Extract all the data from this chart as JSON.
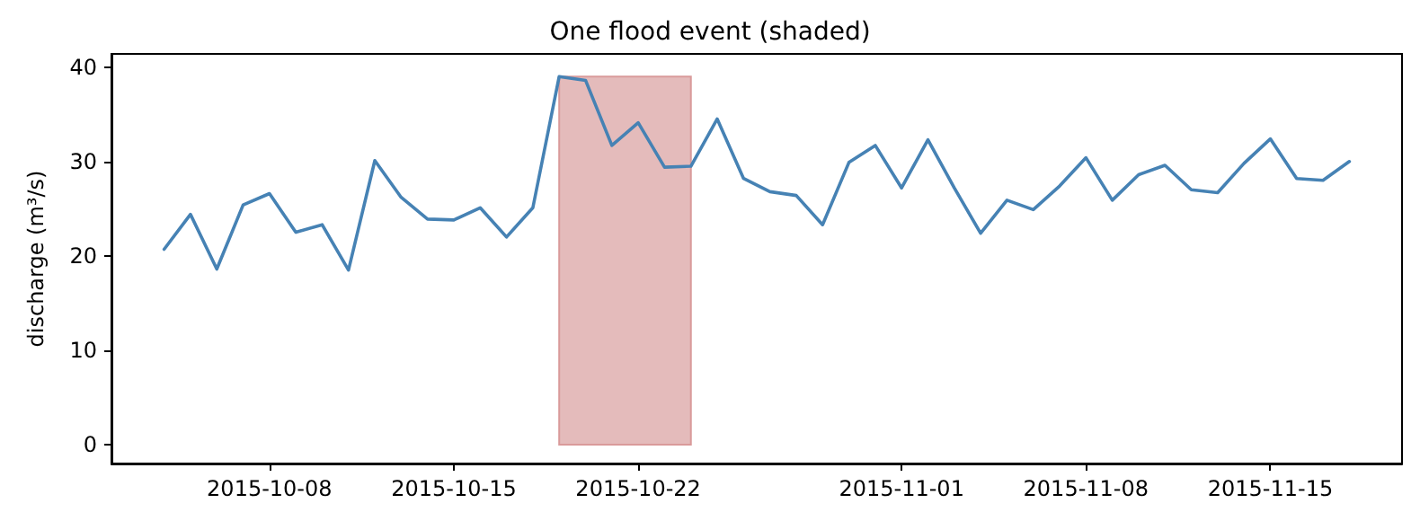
{
  "chart_data": {
    "type": "line",
    "title": "One flood event (shaded)",
    "ylabel": "discharge (m³/s)",
    "x": [
      "2015-10-04",
      "2015-10-05",
      "2015-10-06",
      "2015-10-07",
      "2015-10-08",
      "2015-10-09",
      "2015-10-10",
      "2015-10-11",
      "2015-10-12",
      "2015-10-13",
      "2015-10-14",
      "2015-10-15",
      "2015-10-16",
      "2015-10-17",
      "2015-10-18",
      "2015-10-19",
      "2015-10-20",
      "2015-10-21",
      "2015-10-22",
      "2015-10-23",
      "2015-10-24",
      "2015-10-25",
      "2015-10-26",
      "2015-10-27",
      "2015-10-28",
      "2015-10-29",
      "2015-10-30",
      "2015-10-31",
      "2015-11-01",
      "2015-11-02",
      "2015-11-03",
      "2015-11-04",
      "2015-11-05",
      "2015-11-06",
      "2015-11-07",
      "2015-11-08",
      "2015-11-09",
      "2015-11-10",
      "2015-11-11",
      "2015-11-12",
      "2015-11-13",
      "2015-11-14",
      "2015-11-15",
      "2015-11-16",
      "2015-11-17",
      "2015-11-18"
    ],
    "series": [
      {
        "color": "#4682b4",
        "values": [
          20.7,
          24.4,
          18.6,
          25.4,
          26.6,
          22.5,
          23.3,
          18.5,
          30.1,
          26.2,
          23.9,
          23.8,
          25.1,
          22.0,
          25.1,
          39.0,
          38.6,
          31.7,
          34.1,
          29.4,
          29.5,
          34.5,
          28.2,
          26.8,
          26.4,
          23.3,
          29.9,
          31.7,
          27.2,
          32.3,
          27.2,
          22.4,
          25.9,
          24.9,
          27.4,
          30.4,
          25.9,
          28.6,
          29.6,
          27.0,
          26.7,
          29.8,
          32.4,
          28.2,
          28.0,
          30.0
        ]
      }
    ],
    "bands": [
      {
        "axis": "x",
        "from": "2015-10-19",
        "to": "2015-10-24",
        "color": "#e4bbbb"
      }
    ],
    "xlim": [
      "2015-10-02",
      "2015-11-20"
    ],
    "xticks": [
      "2015-10-08",
      "2015-10-15",
      "2015-10-22",
      "2015-11-01",
      "2015-11-08",
      "2015-11-15"
    ],
    "ylim": [
      -2,
      41.4
    ],
    "yticks": [
      0,
      10,
      20,
      30,
      40
    ],
    "grid": false,
    "marker": "none",
    "line_style": "solid"
  }
}
